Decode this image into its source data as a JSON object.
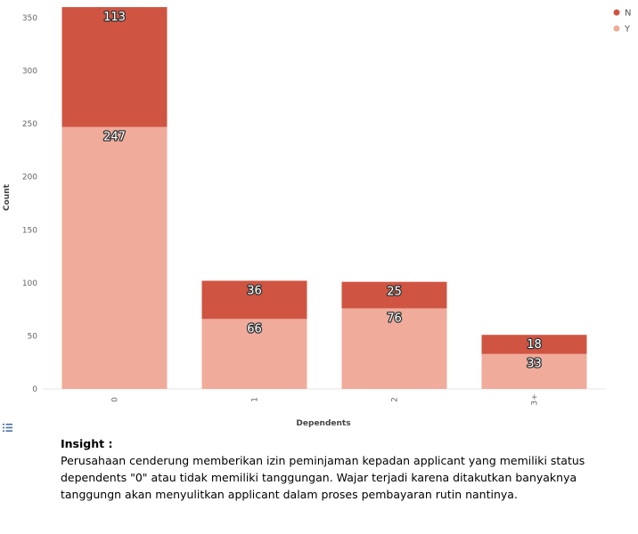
{
  "chart_data": {
    "type": "bar",
    "stacked": true,
    "xlabel": "Dependents",
    "ylabel": "Count",
    "categories": [
      "0",
      "1",
      "2",
      "3+"
    ],
    "series": [
      {
        "name": "Y",
        "values": [
          247,
          66,
          76,
          33
        ],
        "color": "#f0ab9b"
      },
      {
        "name": "N",
        "values": [
          113,
          36,
          25,
          18
        ],
        "color": "#cf5442"
      }
    ],
    "ylim": [
      0,
      360
    ],
    "yticks": [
      0,
      50,
      100,
      150,
      200,
      250,
      300,
      350
    ],
    "grid": false,
    "legend_position": "top-right",
    "legend_order": [
      "N",
      "Y"
    ]
  },
  "insight": {
    "title": "Insight :",
    "body": "Perusahaan cenderung memberikan izin peminjaman kepadan applicant yang memiliki status dependents \"0\" atau tidak memiliki tanggungan. Wajar terjadi karena ditakutkan banyaknya tanggungn akan menyulitkan applicant dalam proses pembayaran rutin nantinya."
  },
  "icons": {
    "table_toggle": "list-icon"
  }
}
